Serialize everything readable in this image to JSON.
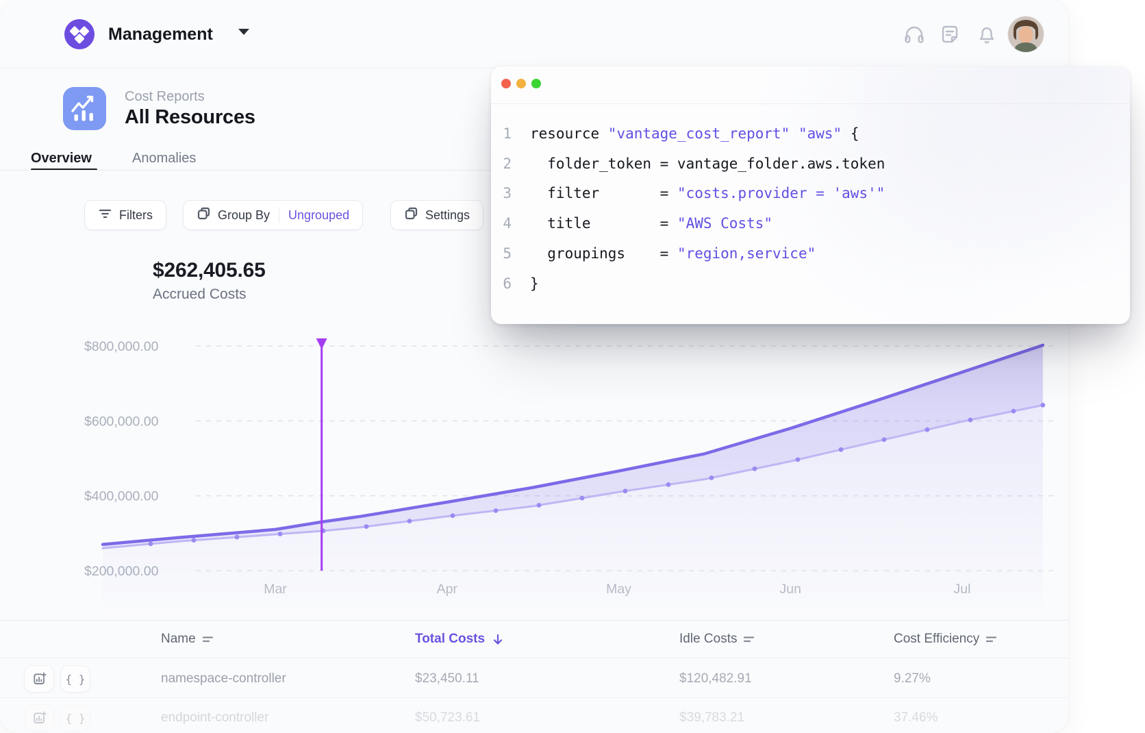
{
  "header": {
    "workspace": "Management",
    "icons": [
      "headphones-icon",
      "notes-icon",
      "bell-icon"
    ]
  },
  "page": {
    "breadcrumb": "Cost Reports",
    "title": "All Resources",
    "tabs": [
      {
        "label": "Overview",
        "active": true
      },
      {
        "label": "Anomalies",
        "active": false
      }
    ]
  },
  "toolbar": {
    "filters": "Filters",
    "group_by": "Group By",
    "group_by_value": "Ungrouped",
    "settings": "Settings"
  },
  "summary": {
    "value": "$262,405.65",
    "label": "Accrued Costs"
  },
  "code_window": {
    "lines": [
      {
        "num": "1",
        "tokens": [
          {
            "t": "resource ",
            "c": "code"
          },
          {
            "t": "\"vantage_cost_report\"",
            "c": "str"
          },
          {
            "t": " ",
            "c": "code"
          },
          {
            "t": "\"aws\"",
            "c": "str"
          },
          {
            "t": " {",
            "c": "code"
          }
        ]
      },
      {
        "num": "2",
        "tokens": [
          {
            "t": "  folder_token = vantage_folder.aws.token",
            "c": "code"
          }
        ]
      },
      {
        "num": "3",
        "tokens": [
          {
            "t": "  filter       = ",
            "c": "code"
          },
          {
            "t": "\"costs.provider = 'aws'\"",
            "c": "str"
          }
        ]
      },
      {
        "num": "4",
        "tokens": [
          {
            "t": "  title        = ",
            "c": "code"
          },
          {
            "t": "\"AWS Costs\"",
            "c": "str"
          }
        ]
      },
      {
        "num": "5",
        "tokens": [
          {
            "t": "  groupings    = ",
            "c": "code"
          },
          {
            "t": "\"region,service\"",
            "c": "str"
          }
        ]
      },
      {
        "num": "6",
        "tokens": [
          {
            "t": "}",
            "c": "code"
          }
        ]
      }
    ]
  },
  "chart_data": {
    "type": "area",
    "title": "Accrued Costs",
    "total": "$262,405.65",
    "y_axis": {
      "min": 200000,
      "max": 800000,
      "tick_step": 200000,
      "tick_labels": [
        "$200,000.00",
        "$400,000.00",
        "$600,000.00",
        "$800,000.00"
      ],
      "gridlines": "dashed"
    },
    "x_axis": {
      "unit": "month",
      "tick_labels": [
        "Mar",
        "Apr",
        "May",
        "Jun",
        "Jul"
      ]
    },
    "series": [
      {
        "name": "upper",
        "color": "#7c6ae8",
        "style": "solid",
        "points": [
          [
            -1.005,
            270000
          ],
          [
            -0.57,
            288000
          ],
          [
            0,
            310000
          ],
          [
            0.27,
            330000
          ],
          [
            0.5,
            345000
          ],
          [
            1,
            383000
          ],
          [
            1.5,
            422000
          ],
          [
            2,
            466000
          ],
          [
            2.5,
            512000
          ],
          [
            3,
            580000
          ],
          [
            3.5,
            654000
          ],
          [
            4,
            730000
          ],
          [
            4.47,
            802000
          ]
        ]
      },
      {
        "name": "lower",
        "color": "#bfb6f4",
        "style": "line-with-dots",
        "points": [
          [
            -1.005,
            260000
          ],
          [
            -0.57,
            278000
          ],
          [
            0,
            297000
          ],
          [
            0.27,
            306000
          ],
          [
            0.5,
            316000
          ],
          [
            1,
            345000
          ],
          [
            1.5,
            372000
          ],
          [
            2,
            410000
          ],
          [
            2.5,
            444000
          ],
          [
            3,
            492000
          ],
          [
            3.5,
            545000
          ],
          [
            4,
            598000
          ],
          [
            4.47,
            642000
          ]
        ]
      }
    ],
    "marker": {
      "month_offset": 0.27,
      "color": "#a53df2"
    },
    "legend": "none"
  },
  "table": {
    "columns": [
      {
        "label": "Name",
        "sort": "none"
      },
      {
        "label": "Total Costs",
        "sort": "desc"
      },
      {
        "label": "Idle Costs",
        "sort": "none"
      },
      {
        "label": "Cost Efficiency",
        "sort": "none"
      }
    ],
    "rows": [
      {
        "name": "namespace-controller",
        "total_costs": "$23,450.11",
        "idle_costs": "$120,482.91",
        "cost_efficiency": "9.27%",
        "faded": false
      },
      {
        "name": "endpoint-controller",
        "total_costs": "$50,723.61",
        "idle_costs": "$39,783.21",
        "cost_efficiency": "37.46%",
        "faded": true
      }
    ]
  },
  "colors": {
    "accent_purple": "#6a52e0",
    "logo_purple": "#6d4ce0",
    "tile_blue": "#7e9af2",
    "line_primary": "#7c6ae8",
    "line_secondary": "#bfb6f4",
    "marker_purple": "#a53df2",
    "traffic_red": "#f2624d",
    "traffic_yellow": "#f3b23f",
    "traffic_green": "#3ad435"
  }
}
